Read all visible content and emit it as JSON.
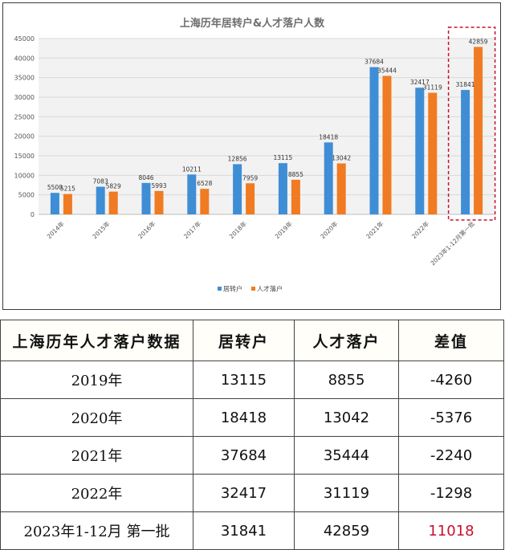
{
  "chart_data": {
    "type": "bar",
    "title": "上海历年居转户&人才落户人数",
    "categories": [
      "2014年",
      "2015年",
      "2016年",
      "2017年",
      "2018年",
      "2019年",
      "2020年",
      "2021年",
      "2022年",
      "2023年1-12月第一批"
    ],
    "series": [
      {
        "name": "居转户",
        "values": [
          5500,
          7083,
          8046,
          10211,
          12856,
          13115,
          18418,
          37684,
          32417,
          31841
        ],
        "color": "#3f8ed5"
      },
      {
        "name": "人才落户",
        "values": [
          5215,
          5829,
          5993,
          6528,
          7959,
          8855,
          13042,
          35444,
          31119,
          42859
        ],
        "color": "#f07b22"
      }
    ],
    "ylim": [
      0,
      45000
    ],
    "yticks": [
      0,
      5000,
      10000,
      15000,
      20000,
      25000,
      30000,
      35000,
      40000,
      45000
    ],
    "grid": true,
    "legend_position": "bottom",
    "highlight_category": "2023年1-12月第一批",
    "highlight_color": "#c8102e"
  },
  "table": {
    "headers": [
      "上海历年人才落户数据",
      "居转户",
      "人才落户",
      "差值"
    ],
    "rows": [
      {
        "period": "2019年",
        "resident": "13115",
        "talent": "8855",
        "diff": "-4260"
      },
      {
        "period": "2020年",
        "resident": "18418",
        "talent": "13042",
        "diff": "-5376"
      },
      {
        "period": "2021年",
        "resident": "37684",
        "talent": "35444",
        "diff": "-2240"
      },
      {
        "period": "2022年",
        "resident": "32417",
        "talent": "31119",
        "diff": "-1298"
      },
      {
        "period": "2023年1-12月 第一批",
        "resident": "31841",
        "talent": "42859",
        "diff": "11018",
        "highlight": true
      }
    ]
  }
}
